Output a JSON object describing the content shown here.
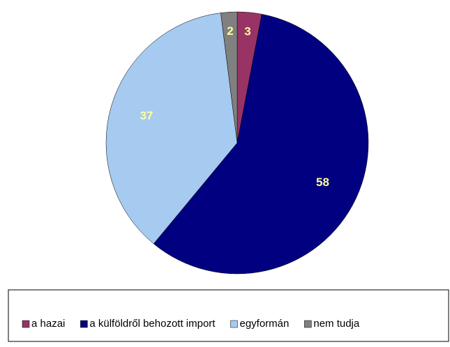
{
  "chart_data": {
    "type": "pie",
    "categories": [
      "a hazai",
      "a külföldről behozott import",
      "egyformán",
      "nem tudja"
    ],
    "values": [
      3,
      58,
      37,
      2
    ],
    "colors": [
      "#993366",
      "#000080",
      "#a6caf0",
      "#808080"
    ],
    "legend": "bottom"
  }
}
